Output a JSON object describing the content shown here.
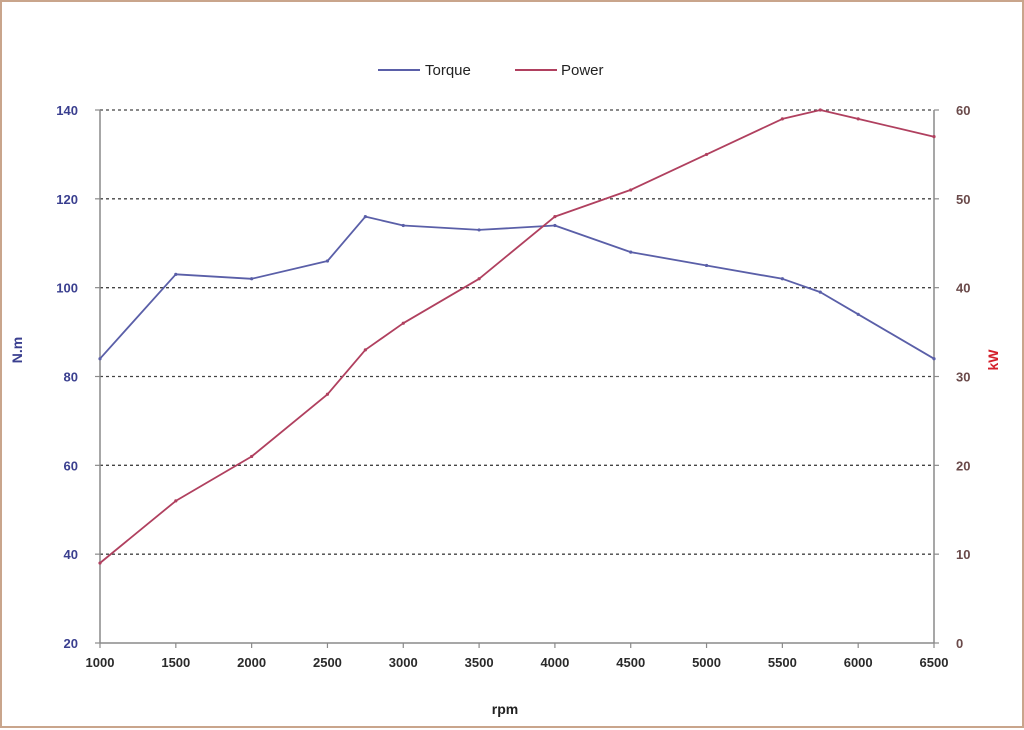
{
  "chart_data": {
    "type": "line",
    "x": [
      1000,
      1500,
      2000,
      2500,
      2750,
      3000,
      3500,
      4000,
      4500,
      5000,
      5500,
      5750,
      6000,
      6500
    ],
    "series": [
      {
        "name": "Torque",
        "axis": "left",
        "color": "#5a5fa8",
        "values": [
          84,
          103,
          102,
          106,
          116,
          114,
          113,
          114,
          108,
          105,
          102,
          99,
          94,
          84
        ]
      },
      {
        "name": "Power",
        "axis": "right",
        "color": "#b0405f",
        "values": [
          9,
          16,
          21,
          28,
          33,
          36,
          41,
          48,
          51,
          55,
          59,
          60,
          59,
          57
        ]
      }
    ],
    "xlabel": "rpm",
    "ylabel_left": "N.m",
    "ylabel_right": "kW",
    "x_ticks": [
      "1000",
      "1500",
      "2000",
      "2500",
      "3000",
      "3500",
      "4000",
      "4500",
      "5000",
      "5500",
      "6000",
      "6500"
    ],
    "y_left_ticks": [
      "20",
      "40",
      "60",
      "80",
      "100",
      "120",
      "140"
    ],
    "y_right_ticks": [
      "0",
      "10",
      "20",
      "30",
      "40",
      "50",
      "60"
    ],
    "xlim": [
      1000,
      6500
    ],
    "ylim_left": [
      20,
      140
    ],
    "ylim_right": [
      0,
      60
    ],
    "grid": "horizontal dashed",
    "legend": "top-center",
    "colors": {
      "left_axis_text": "#3a3f8f",
      "right_axis_text": "#d41f2a",
      "right_tick_text": "#6a4a4a",
      "axis_line": "#8a8a8a",
      "grid": "#444444"
    }
  }
}
